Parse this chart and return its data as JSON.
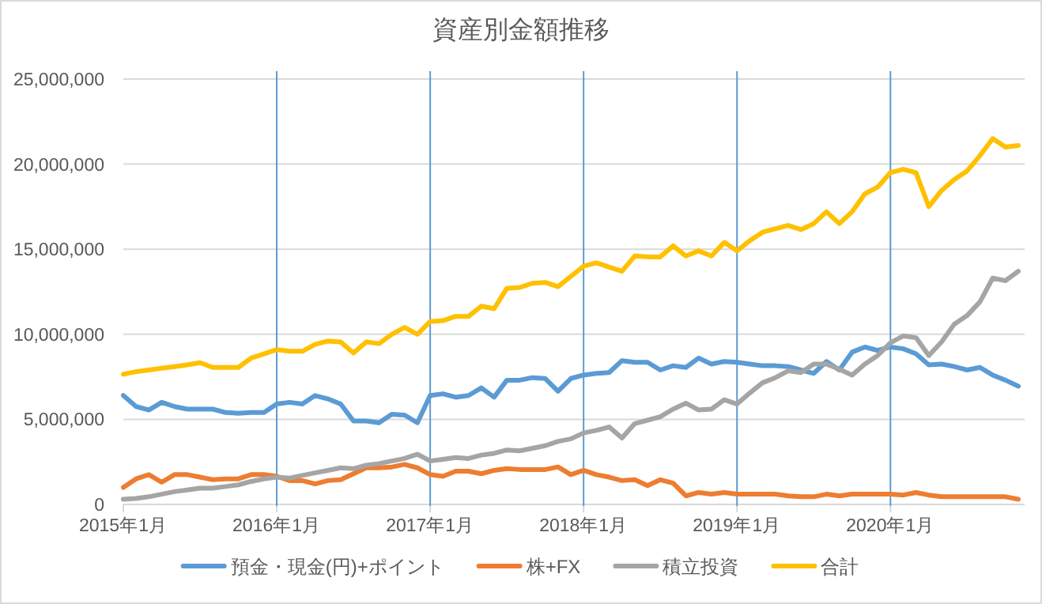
{
  "chart_data": {
    "type": "line",
    "title": "資産別金額推移",
    "categories": [
      "2015年1月",
      null,
      null,
      null,
      null,
      null,
      null,
      null,
      null,
      null,
      null,
      null,
      "2016年1月",
      null,
      null,
      null,
      null,
      null,
      null,
      null,
      null,
      null,
      null,
      null,
      "2017年1月",
      null,
      null,
      null,
      null,
      null,
      null,
      null,
      null,
      null,
      null,
      null,
      "2018年1月",
      null,
      null,
      null,
      null,
      null,
      null,
      null,
      null,
      null,
      null,
      null,
      "2019年1月",
      null,
      null,
      null,
      null,
      null,
      null,
      null,
      null,
      null,
      null,
      null,
      "2020年1月",
      null,
      null,
      null,
      null,
      null,
      null,
      null,
      null,
      null,
      null
    ],
    "series": [
      {
        "name": "預金・現金(円)+ポイント",
        "color": "#5b9bd5",
        "values": [
          6400000,
          5750000,
          5550000,
          6000000,
          5750000,
          5600000,
          5600000,
          5600000,
          5400000,
          5350000,
          5400000,
          5400000,
          5900000,
          6000000,
          5900000,
          6400000,
          6200000,
          5900000,
          4900000,
          4900000,
          4800000,
          5300000,
          5250000,
          4800000,
          6400000,
          6500000,
          6300000,
          6400000,
          6850000,
          6300000,
          7300000,
          7300000,
          7450000,
          7400000,
          6650000,
          7400000,
          7600000,
          7700000,
          7750000,
          8450000,
          8350000,
          8350000,
          7900000,
          8150000,
          8050000,
          8600000,
          8250000,
          8400000,
          8350000,
          8250000,
          8150000,
          8150000,
          8100000,
          7900000,
          7700000,
          8400000,
          7900000,
          8950000,
          9250000,
          9050000,
          9250000,
          9150000,
          8850000,
          8200000,
          8250000,
          8100000,
          7900000,
          8050000,
          7600000,
          7300000,
          6950000
        ]
      },
      {
        "name": "株+FX",
        "color": "#ed7d31",
        "values": [
          1000000,
          1500000,
          1750000,
          1300000,
          1750000,
          1750000,
          1600000,
          1450000,
          1500000,
          1500000,
          1750000,
          1750000,
          1650000,
          1400000,
          1400000,
          1200000,
          1400000,
          1450000,
          1800000,
          2150000,
          2150000,
          2200000,
          2350000,
          2150000,
          1750000,
          1650000,
          1950000,
          1950000,
          1800000,
          2000000,
          2100000,
          2050000,
          2050000,
          2050000,
          2200000,
          1750000,
          2000000,
          1750000,
          1600000,
          1400000,
          1450000,
          1100000,
          1450000,
          1250000,
          500000,
          700000,
          600000,
          700000,
          600000,
          600000,
          600000,
          600000,
          500000,
          450000,
          450000,
          600000,
          500000,
          600000,
          600000,
          600000,
          600000,
          550000,
          700000,
          550000,
          450000,
          450000,
          450000,
          450000,
          450000,
          450000,
          300000
        ]
      },
      {
        "name": "積立投資",
        "color": "#a5a5a5",
        "values": [
          300000,
          350000,
          450000,
          600000,
          750000,
          850000,
          950000,
          950000,
          1050000,
          1150000,
          1350000,
          1500000,
          1600000,
          1550000,
          1700000,
          1850000,
          2000000,
          2150000,
          2100000,
          2300000,
          2400000,
          2550000,
          2700000,
          2950000,
          2550000,
          2650000,
          2750000,
          2700000,
          2900000,
          3000000,
          3200000,
          3150000,
          3300000,
          3450000,
          3700000,
          3850000,
          4200000,
          4350000,
          4550000,
          3900000,
          4750000,
          4950000,
          5150000,
          5600000,
          5950000,
          5550000,
          5600000,
          6150000,
          5900000,
          6550000,
          7150000,
          7450000,
          7850000,
          7750000,
          8250000,
          8250000,
          7950000,
          7600000,
          8250000,
          8750000,
          9500000,
          9900000,
          9800000,
          8750000,
          9550000,
          10600000,
          11100000,
          11900000,
          13300000,
          13150000,
          13700000
        ]
      },
      {
        "name": "合計",
        "color": "#ffc000",
        "values": [
          7650000,
          7800000,
          7900000,
          8000000,
          8100000,
          8200000,
          8330000,
          8050000,
          8050000,
          8050000,
          8600000,
          8850000,
          9100000,
          9000000,
          9000000,
          9400000,
          9600000,
          9550000,
          8900000,
          9550000,
          9450000,
          10000000,
          10400000,
          10000000,
          10750000,
          10800000,
          11050000,
          11050000,
          11650000,
          11500000,
          12700000,
          12750000,
          13000000,
          13050000,
          12800000,
          13400000,
          14000000,
          14200000,
          13950000,
          13700000,
          14600000,
          14550000,
          14550000,
          15200000,
          14600000,
          14900000,
          14600000,
          15400000,
          14900000,
          15500000,
          16000000,
          16200000,
          16400000,
          16150000,
          16500000,
          17200000,
          16500000,
          17200000,
          18250000,
          18650000,
          19500000,
          19700000,
          19500000,
          17500000,
          18450000,
          19100000,
          19600000,
          20500000,
          21500000,
          21000000,
          21100000
        ]
      }
    ],
    "ylim": [
      0,
      25000000
    ],
    "yticks": [
      {
        "value": 0,
        "label": "0"
      },
      {
        "value": 5000000,
        "label": "5,000,000"
      },
      {
        "value": 10000000,
        "label": "10,000,000"
      },
      {
        "value": 15000000,
        "label": "15,000,000"
      },
      {
        "value": 20000000,
        "label": "20,000,000"
      },
      {
        "value": 25000000,
        "label": "25,000,000"
      }
    ],
    "grid": "y",
    "legend": "bottom",
    "ref_lines": [
      {
        "axis": "x",
        "value": "2016年1月",
        "color": "#5b9bd5"
      },
      {
        "axis": "x",
        "value": "2017年1月",
        "color": "#5b9bd5"
      },
      {
        "axis": "x",
        "value": "2018年1月",
        "color": "#5b9bd5"
      },
      {
        "axis": "x",
        "value": "2019年1月",
        "color": "#5b9bd5"
      },
      {
        "axis": "x",
        "value": "2020年1月",
        "color": "#5b9bd5"
      }
    ]
  }
}
